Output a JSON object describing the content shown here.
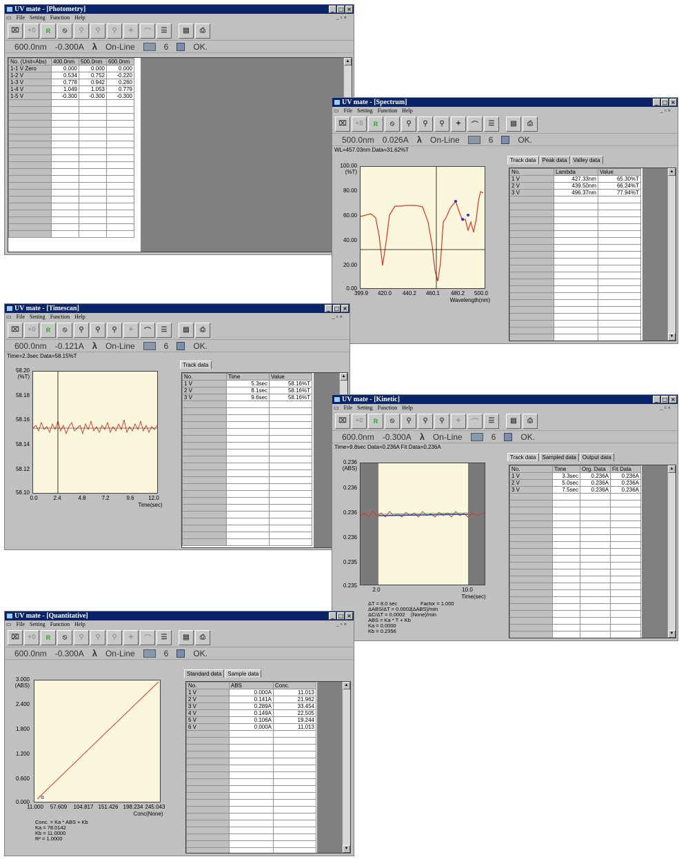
{
  "menu": {
    "file": "File",
    "setting": "Setting",
    "function": "Function",
    "help": "Help"
  },
  "colors": {
    "title": "#0a246a",
    "plot_bg": "#fbf7dc",
    "trace": "#e03020",
    "marker": "#3030c0"
  },
  "photometry": {
    "title": "UV mate - [Photometry]",
    "status": {
      "wl": "600.0nm",
      "abs": "-0.300A",
      "mode": "On-Line",
      "num": "6",
      "ok": "OK."
    },
    "columns": [
      "No. (Unit=Abs)",
      "400.0nm",
      "500.0nm",
      "600.0nm"
    ],
    "rows": [
      [
        "1-1 V Zero",
        "0.000",
        "0.000",
        "0.000"
      ],
      [
        "1-2 V",
        "0.534",
        "0.752",
        "-0.220"
      ],
      [
        "1-3 V",
        "0.778",
        "0.942",
        "0.260"
      ],
      [
        "1-4 V",
        "1.049",
        "1.053",
        "0.779"
      ],
      [
        "1-5 V",
        "-0.300",
        "-0.300",
        "-0.300"
      ]
    ]
  },
  "spectrum": {
    "title": "UV mate - [Spectrum]",
    "status": {
      "wl": "500.0nm",
      "abs": "0.026A",
      "mode": "On-Line",
      "num": "6",
      "ok": "OK."
    },
    "cursor": "WL=457.03nm Data=31.62%T",
    "tabs": [
      "Track data",
      "Peak data",
      "Valley data"
    ],
    "columns": [
      "No.",
      "Lambda",
      "Value"
    ],
    "rows": [
      [
        "1 V",
        "427.33nm",
        "65.30%T"
      ],
      [
        "2 V",
        "439.50nm",
        "66.24%T"
      ],
      [
        "3 V",
        "496.37nm",
        "77.94%T"
      ]
    ],
    "yunit": "(%T)",
    "yticks": [
      "100.00",
      "80.00",
      "60.00",
      "40.00",
      "20.00",
      "0.00"
    ],
    "xticks": [
      "399.9",
      "420.0",
      "440.2",
      "460.1",
      "480.2",
      "500.0"
    ],
    "xlabel": "Wavelength(nm)"
  },
  "timescan": {
    "title": "UV mate - [Timescan]",
    "status": {
      "wl": "600.0nm",
      "abs": "-0.121A",
      "mode": "On-Line",
      "num": "6",
      "ok": "OK."
    },
    "cursor": "Time=2.3sec Data=58.15%T",
    "tabs": [
      "Track data"
    ],
    "columns": [
      "No.",
      "Time",
      "Value"
    ],
    "rows": [
      [
        "1 V",
        "5.3sec",
        "58.16%T"
      ],
      [
        "2 V",
        "8.1sec",
        "58.16%T"
      ],
      [
        "3 V",
        "9.6sec",
        "58.16%T"
      ]
    ],
    "yunit": "(%T)",
    "yticks": [
      "58.20",
      "58.18",
      "58.16",
      "58.14",
      "58.12",
      "58.10"
    ],
    "xticks": [
      "0.0",
      "2.4",
      "4.8",
      "7.2",
      "9.6",
      "12.0"
    ],
    "xlabel": "Time(sec)"
  },
  "kinetic": {
    "title": "UV mate - [Kinetic]",
    "status": {
      "wl": "600.0nm",
      "abs": "-0.300A",
      "mode": "On-Line",
      "num": "6",
      "ok": "OK."
    },
    "cursor": "Time=9.8sec Data=0.236A Fit Data=0.236A",
    "tabs": [
      "Track data",
      "Sampled data",
      "Output data"
    ],
    "columns": [
      "No.",
      "Time",
      "Org. Data",
      "Fit Data"
    ],
    "rows": [
      [
        "1 V",
        "3.3sec",
        "0.236A",
        "0.236A"
      ],
      [
        "2 V",
        "5.0sec",
        "0.236A",
        "0.236A"
      ],
      [
        "3 V",
        "7.5sec",
        "0.236A",
        "0.236A"
      ]
    ],
    "yunit": "(ABS)",
    "yticks": [
      "0.236",
      "0.236",
      "0.236",
      "0.236",
      "0.235",
      "0.235",
      "0.235"
    ],
    "xticks": [
      "2.0",
      "10.0"
    ],
    "xlabel": "Time(sec)",
    "info_left": [
      "ΔT = 8.0 sec",
      "ΔABS/ΔT = 0.0002",
      "ΔC/ΔT = 0.0002",
      "ABS = Ka * T + Kb",
      "Ka = 0.0000",
      "Kb = 0.2356"
    ],
    "info_right": [
      "Factor = 1.000",
      "(ΔABS)/min",
      "(None)/min"
    ]
  },
  "quantitative": {
    "title": "UV mate - [Quantitative]",
    "status": {
      "wl": "600.0nm",
      "abs": "-0.300A",
      "mode": "On-Line",
      "num": "6",
      "ok": "OK."
    },
    "tabs": [
      "Standard data",
      "Sample data"
    ],
    "columns": [
      "No.",
      "ABS",
      "Conc."
    ],
    "rows": [
      [
        "1 V",
        "0.000A",
        "11.013"
      ],
      [
        "2 V",
        "0.141A",
        "21.962"
      ],
      [
        "3 V",
        "0.289A",
        "33.454"
      ],
      [
        "4 V",
        "0.149A",
        "22.505"
      ],
      [
        "5 V",
        "0.106A",
        "19.244"
      ],
      [
        "6 V",
        "0.000A",
        "11.013"
      ]
    ],
    "yunit": "(ABS)",
    "yticks": [
      "3.000",
      "2.400",
      "1.800",
      "1.200",
      "0.600",
      "0.000"
    ],
    "xticks": [
      "11.000",
      "57.609",
      "104.817",
      "151.426",
      "198.234",
      "245.043"
    ],
    "xlabel": "Conc(None)",
    "info": [
      "Conc. = Ka * ABS + Kb",
      "Ka = 78.0142",
      "Kb = 11.0000",
      "R² = 1.0000"
    ]
  }
}
